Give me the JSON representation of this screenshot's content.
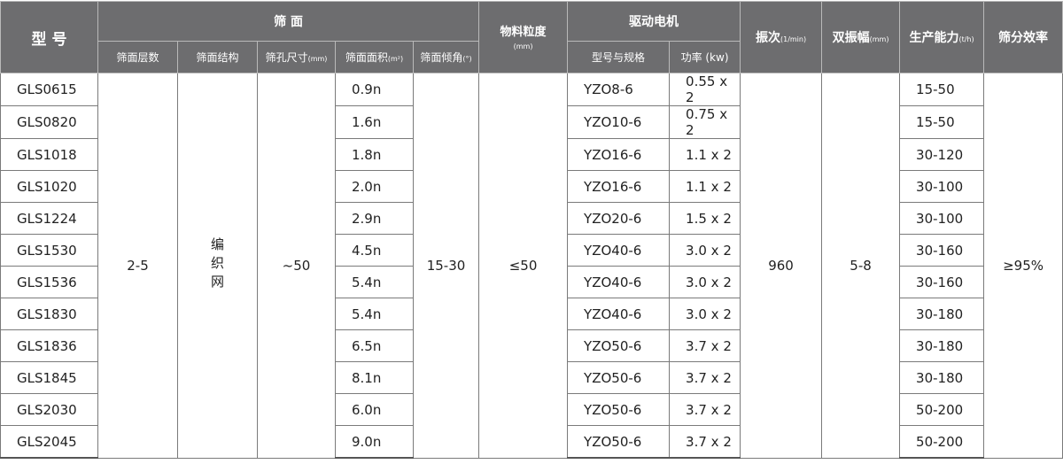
{
  "header": {
    "model": "型 号",
    "screen": "筛 面",
    "layers": "筛面层数",
    "structure": "筛面结构",
    "aperture": "筛孔尺寸",
    "aperture_unit": "(mm)",
    "area": "筛面面积",
    "area_unit": "(m²)",
    "angle": "筛面倾角",
    "angle_unit": "(°)",
    "particle": "物料粒度",
    "particle_unit": "(mm)",
    "motor": "驱动电机",
    "motor_model": "型号与规格",
    "power": "功率 (kw)",
    "freq": "振次",
    "freq_unit": "(1/min)",
    "amp": "双振幅",
    "amp_unit": "(mm)",
    "capacity": "生产能力",
    "capacity_unit": "(t/h)",
    "efficiency": "筛分效率"
  },
  "shared": {
    "layers": "2-5",
    "structure": "编织网",
    "aperture": "~50",
    "angle": "15-30",
    "particle": "≤50",
    "freq": "960",
    "amp": "5-8",
    "efficiency": "≥95%"
  },
  "rows": [
    {
      "model": "GLS0615",
      "area": "0.9n",
      "motor": "YZO8-6",
      "power": "0.55 x 2",
      "capacity": "15-50"
    },
    {
      "model": "GLS0820",
      "area": "1.6n",
      "motor": "YZO10-6",
      "power": "0.75 x 2",
      "capacity": "15-50"
    },
    {
      "model": "GLS1018",
      "area": "1.8n",
      "motor": "YZO16-6",
      "power": "1.1 x 2",
      "capacity": "30-120"
    },
    {
      "model": "GLS1020",
      "area": "2.0n",
      "motor": "YZO16-6",
      "power": "1.1 x 2",
      "capacity": "30-100"
    },
    {
      "model": "GLS1224",
      "area": "2.9n",
      "motor": "YZO20-6",
      "power": "1.5 x 2",
      "capacity": "30-100"
    },
    {
      "model": "GLS1530",
      "area": "4.5n",
      "motor": "YZO40-6",
      "power": "3.0 x 2",
      "capacity": "30-160"
    },
    {
      "model": "GLS1536",
      "area": "5.4n",
      "motor": "YZO40-6",
      "power": "3.0 x 2",
      "capacity": "30-160"
    },
    {
      "model": "GLS1830",
      "area": "5.4n",
      "motor": "YZO40-6",
      "power": "3.0 x 2",
      "capacity": "30-180"
    },
    {
      "model": "GLS1836",
      "area": "6.5n",
      "motor": "YZO50-6",
      "power": "3.7 x 2",
      "capacity": "30-180"
    },
    {
      "model": "GLS1845",
      "area": "8.1n",
      "motor": "YZO50-6",
      "power": "3.7 x 2",
      "capacity": "30-180"
    },
    {
      "model": "GLS2030",
      "area": "6.0n",
      "motor": "YZO50-6",
      "power": "3.7 x 2",
      "capacity": "50-200"
    },
    {
      "model": "GLS2045",
      "area": "9.0n",
      "motor": "YZO50-6",
      "power": "3.7 x 2",
      "capacity": "50-200"
    }
  ]
}
